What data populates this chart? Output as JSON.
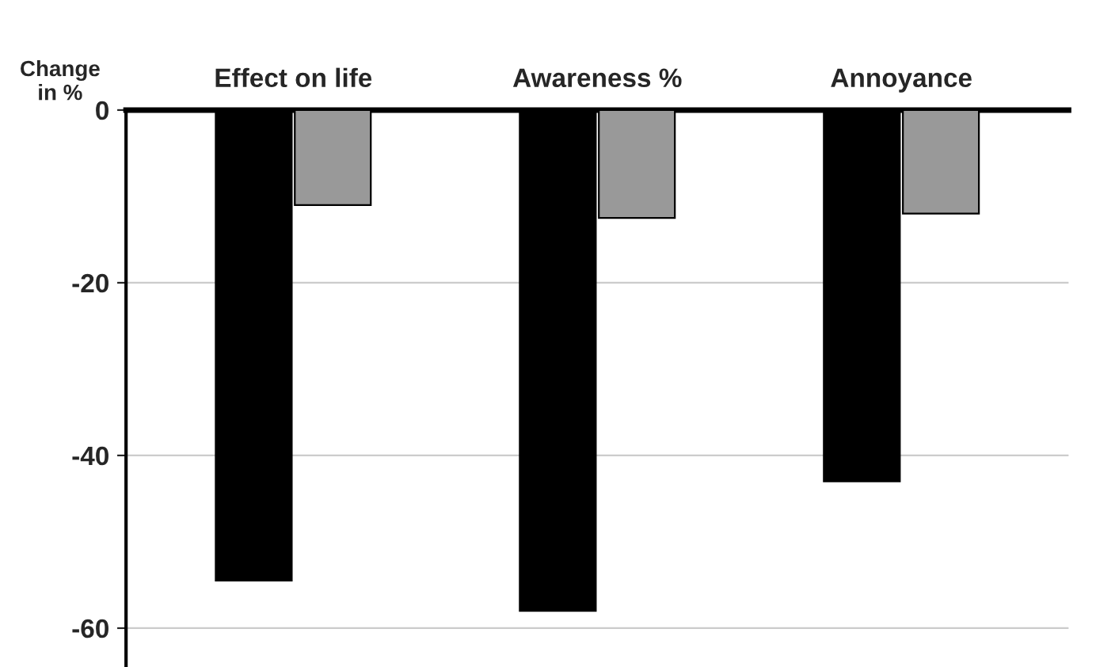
{
  "chart_data": {
    "type": "bar",
    "ylabel": "Change\nin %",
    "categories": [
      "Effect on life",
      "Awareness %",
      "Annoyance"
    ],
    "series": [
      {
        "color": "#000000",
        "values": [
          -54.5,
          -58,
          -43
        ]
      },
      {
        "color": "#999999",
        "values": [
          -11,
          -12.5,
          -12
        ]
      }
    ],
    "ylim": [
      -64.5,
      0
    ],
    "yticks": [
      0,
      -20,
      -40,
      -60
    ],
    "grid": "y",
    "legend": false
  }
}
